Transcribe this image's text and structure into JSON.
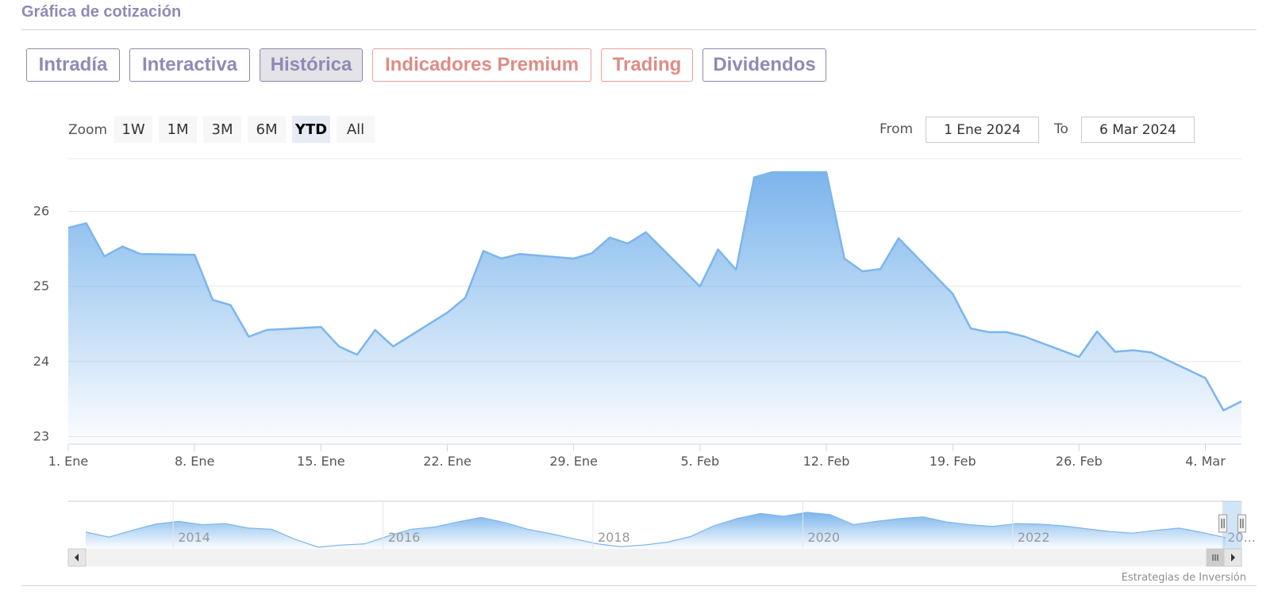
{
  "header": {
    "title": "Gráfica de cotización"
  },
  "tabs": [
    {
      "label": "Intradía",
      "active": false,
      "premium": false
    },
    {
      "label": "Interactiva",
      "active": false,
      "premium": false
    },
    {
      "label": "Histórica",
      "active": true,
      "premium": false
    },
    {
      "label": "Indicadores Premium",
      "active": false,
      "premium": true
    },
    {
      "label": "Trading",
      "active": false,
      "premium": true
    },
    {
      "label": "Dividendos",
      "active": false,
      "premium": false
    }
  ],
  "range_selector": {
    "zoom_label": "Zoom",
    "buttons": [
      "1W",
      "1M",
      "3M",
      "6M",
      "YTD",
      "All"
    ],
    "selected": "YTD",
    "from_label": "From",
    "from_value": "1 Ene 2024",
    "to_label": "To",
    "to_value": "6 Mar 2024"
  },
  "colors": {
    "series_line": "#7cb5ec",
    "series_fill_top": "#7cb5ec",
    "grid": "#e6e6e6",
    "tab_text": "#8d8bb6",
    "premium_text": "#de8c86"
  },
  "credit": "Estrategias de Inversión",
  "chart_data": {
    "type": "area",
    "x_axis_type": "datetime",
    "x": [
      "2024-01-01",
      "2024-01-02",
      "2024-01-03",
      "2024-01-04",
      "2024-01-05",
      "2024-01-08",
      "2024-01-09",
      "2024-01-10",
      "2024-01-11",
      "2024-01-12",
      "2024-01-15",
      "2024-01-16",
      "2024-01-17",
      "2024-01-18",
      "2024-01-19",
      "2024-01-22",
      "2024-01-23",
      "2024-01-24",
      "2024-01-25",
      "2024-01-26",
      "2024-01-29",
      "2024-01-30",
      "2024-01-31",
      "2024-02-01",
      "2024-02-02",
      "2024-02-05",
      "2024-02-06",
      "2024-02-07",
      "2024-02-08",
      "2024-02-09",
      "2024-02-12",
      "2024-02-13",
      "2024-02-14",
      "2024-02-15",
      "2024-02-16",
      "2024-02-19",
      "2024-02-20",
      "2024-02-21",
      "2024-02-22",
      "2024-02-23",
      "2024-02-26",
      "2024-02-27",
      "2024-02-28",
      "2024-02-29",
      "2024-03-01",
      "2024-03-04",
      "2024-03-05",
      "2024-03-06"
    ],
    "series": [
      {
        "values": [
          25.78,
          25.84,
          25.4,
          25.53,
          25.43,
          25.42,
          24.82,
          24.75,
          24.33,
          24.42,
          24.46,
          24.2,
          24.09,
          24.42,
          24.2,
          24.65,
          24.85,
          25.47,
          25.37,
          25.43,
          25.37,
          25.44,
          25.65,
          25.57,
          25.72,
          25.0,
          25.49,
          25.22,
          26.45,
          26.52,
          26.52,
          25.37,
          25.2,
          25.23,
          25.64,
          24.9,
          24.44,
          24.39,
          24.39,
          24.33,
          24.06,
          24.4,
          24.13,
          24.15,
          24.12,
          23.78,
          23.35,
          23.47
        ]
      }
    ],
    "yaxis": {
      "ticks": [
        23,
        24,
        25,
        26
      ],
      "min": 22.9,
      "max": 26.7
    },
    "xaxis": {
      "ticks": [
        {
          "date": "2024-01-01",
          "label": "1. Ene"
        },
        {
          "date": "2024-01-08",
          "label": "8. Ene"
        },
        {
          "date": "2024-01-15",
          "label": "15. Ene"
        },
        {
          "date": "2024-01-22",
          "label": "22. Ene"
        },
        {
          "date": "2024-01-29",
          "label": "29. Ene"
        },
        {
          "date": "2024-02-05",
          "label": "5. Feb"
        },
        {
          "date": "2024-02-12",
          "label": "12. Feb"
        },
        {
          "date": "2024-02-19",
          "label": "19. Feb"
        },
        {
          "date": "2024-02-26",
          "label": "26. Feb"
        },
        {
          "date": "2024-03-04",
          "label": "4. Mar"
        }
      ],
      "min": "2024-01-01",
      "max": "2024-03-06"
    },
    "grid": true,
    "legend": false,
    "navigator": {
      "year_ticks": [
        "2014",
        "2016",
        "2018",
        "2020",
        "2022",
        "20..."
      ],
      "range_start_year": 2013,
      "range_end_year": 2024.18,
      "selected_from": "2024-01-01",
      "selected_to": "2024-03-06",
      "values": [
        25.5,
        24.6,
        25.8,
        26.9,
        27.4,
        26.8,
        27.0,
        26.2,
        26.0,
        24.2,
        22.8,
        23.2,
        23.4,
        24.8,
        26.0,
        26.4,
        27.3,
        28.1,
        27.2,
        26.0,
        25.2,
        24.3,
        23.4,
        22.9,
        23.2,
        23.7,
        24.7,
        26.6,
        27.9,
        28.8,
        28.3,
        29.0,
        28.6,
        26.8,
        27.4,
        27.9,
        28.2,
        27.3,
        26.8,
        26.5,
        27.0,
        26.9,
        26.6,
        26.1,
        25.6,
        25.3,
        25.8,
        26.2,
        25.4,
        24.5
      ]
    }
  }
}
